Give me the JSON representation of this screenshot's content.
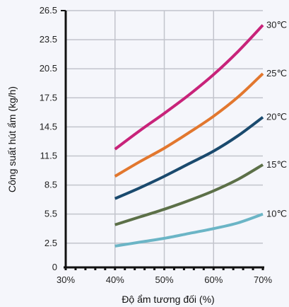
{
  "chart_data": {
    "type": "line",
    "xlabel": "Độ ẩm tương đối (%)",
    "ylabel": "Công suất hút ẩm (kg/h)",
    "x": [
      40,
      45,
      50,
      55,
      60,
      65,
      70
    ],
    "x_ticks": [
      30,
      40,
      50,
      60,
      70
    ],
    "x_tick_labels": [
      "30%",
      "40%",
      "50%",
      "60%",
      "70%"
    ],
    "y_ticks": [
      0,
      2.5,
      5.5,
      8.5,
      11.5,
      14.5,
      17.5,
      20.5,
      23.5,
      26.5
    ],
    "y_tick_labels": [
      "0",
      "2.5",
      "5.5",
      "8.5",
      "11.5",
      "14.5",
      "17.5",
      "20.5",
      "23.5",
      "26.5"
    ],
    "xlim": [
      30,
      70
    ],
    "ylim": [
      0,
      26.5
    ],
    "grid": true,
    "legend": "series labels at right end of lines",
    "series": [
      {
        "name": "30℃",
        "color": "#c8237a",
        "values": [
          12.2,
          14.1,
          15.9,
          17.8,
          19.9,
          22.3,
          25.0
        ]
      },
      {
        "name": "25℃",
        "color": "#e2772e",
        "values": [
          9.4,
          10.9,
          12.3,
          13.9,
          15.6,
          17.6,
          20.0
        ]
      },
      {
        "name": "20℃",
        "color": "#1a4a6e",
        "values": [
          7.1,
          8.2,
          9.4,
          10.7,
          12.0,
          13.6,
          15.5
        ]
      },
      {
        "name": "15℃",
        "color": "#5c7048",
        "values": [
          4.4,
          5.2,
          6.0,
          6.9,
          7.9,
          9.1,
          10.6
        ]
      },
      {
        "name": "10℃",
        "color": "#6bb5c6",
        "values": [
          2.2,
          2.6,
          3.0,
          3.5,
          4.0,
          4.6,
          5.5
        ]
      }
    ]
  }
}
